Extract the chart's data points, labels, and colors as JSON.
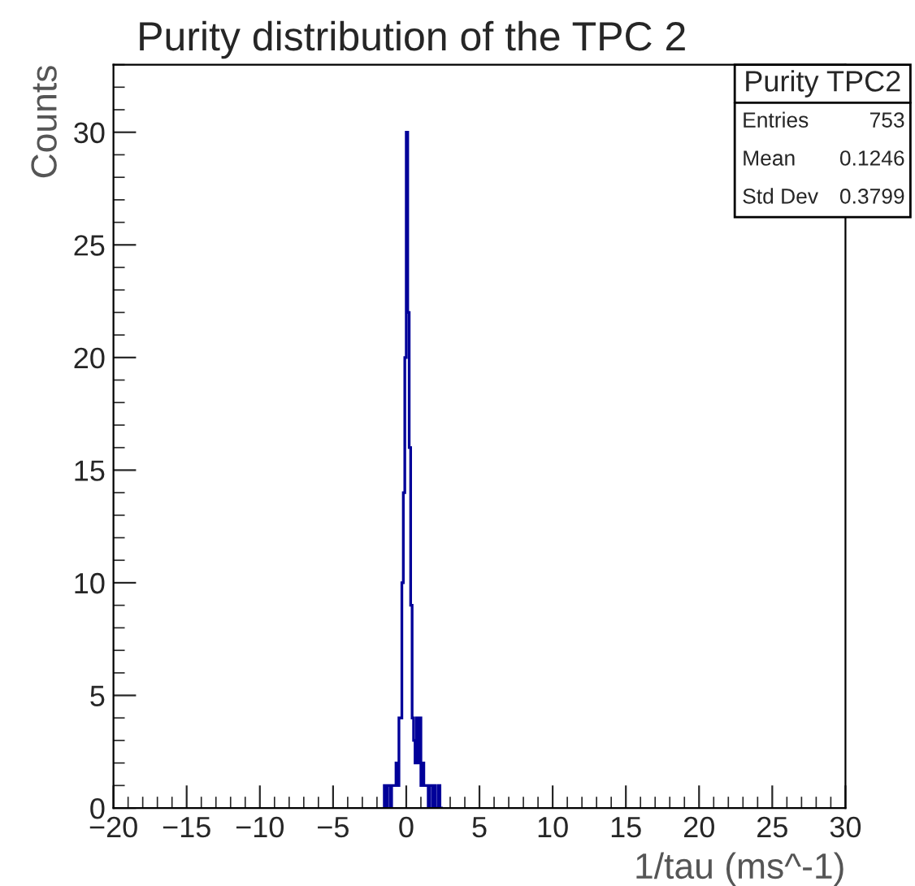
{
  "chart_data": {
    "type": "histogram",
    "title": "Purity distribution of the TPC 2",
    "xlabel": "1/tau (ms^-1)",
    "ylabel": "Counts",
    "bins": [
      -1.5,
      -1.4,
      -1.3,
      -1.2,
      -1.1,
      -1.0,
      -0.9,
      -0.8,
      -0.7,
      -0.6,
      -0.5,
      -0.4,
      -0.3,
      -0.2,
      -0.1,
      0.0,
      0.1,
      0.2,
      0.3,
      0.4,
      0.5,
      0.6,
      0.7,
      0.8,
      0.9,
      1.0,
      1.1,
      1.2,
      1.3,
      1.4,
      1.5,
      1.6,
      1.7,
      1.8,
      1.9,
      2.0,
      2.1,
      2.2,
      2.3,
      2.4,
      2.5
    ],
    "values": [
      1,
      0,
      1,
      1,
      0,
      1,
      1,
      1,
      2,
      1,
      4,
      4,
      10,
      14,
      20,
      30,
      22,
      16,
      9,
      4,
      3,
      2,
      4,
      2,
      4,
      1,
      2,
      1,
      1,
      1,
      0,
      1,
      1,
      0,
      1,
      0,
      0,
      1,
      0,
      0
    ],
    "color": "#000099",
    "xlim": [
      -20,
      30
    ],
    "xticks": [
      {
        "value": -20,
        "label": "−20"
      },
      {
        "value": -15,
        "label": "−15"
      },
      {
        "value": -10,
        "label": "−10"
      },
      {
        "value": -5,
        "label": "−5"
      },
      0,
      5,
      10,
      15,
      20,
      25,
      30
    ],
    "ylim": [
      0,
      33
    ],
    "yticks": [
      0,
      5,
      10,
      15,
      20,
      25,
      30
    ],
    "grid": false,
    "annotations": [
      "Purity TPC2",
      "Entries",
      "753",
      "Mean",
      "0.1246",
      "Std Dev",
      "0.3799"
    ]
  }
}
